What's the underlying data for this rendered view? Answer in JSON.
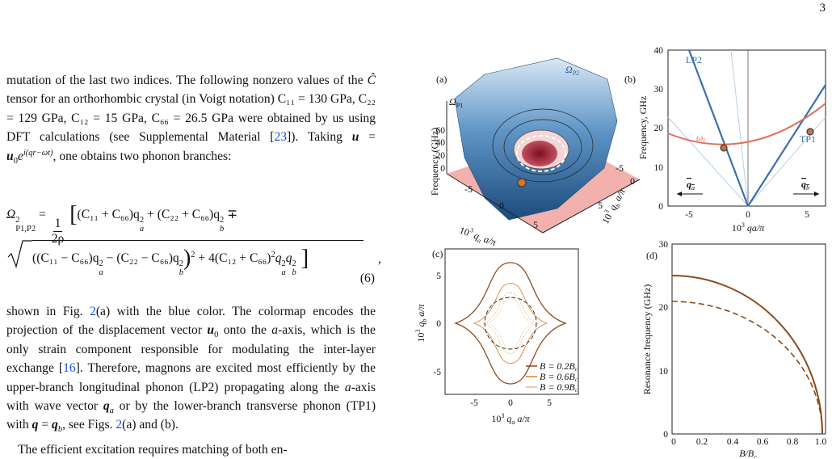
{
  "page_number": "3",
  "paragraphs": [
    [
      "mutation of the last two indices. The following nonzero values of the ",
      "Ĉ",
      " tensor for an orthorhombic crystal (in Voigt notation) ",
      "C₁₁ = 130 GPa, C₂₂ = 129 GPa, C₁₂ = 15 GPa, C₆₆ = 26.5 GPa",
      " were obtained by us using DFT calculations (see Supplemental Material [",
      "23",
      "]). Taking ",
      "u",
      " = ",
      "u",
      "0",
      "e",
      "i(qr−ωt)",
      ", one obtains two phonon branches:"
    ],
    [
      "shown in Fig. ",
      "2",
      "(a) with the blue color. The colormap encodes the projection of the displacement vector ",
      "u",
      "0",
      " onto the ",
      "a",
      "-axis, which is the only strain component responsible for modulating the inter-layer exchange [",
      "16",
      "]. Therefore, magnons are excited most efficiently by the upper-branch longitudinal phonon (LP2) propagating along the ",
      "a",
      "-axis with wave vector ",
      "q",
      "a",
      " or by the lower-branch transverse phonon (TP1) with ",
      "q",
      " = ",
      "q",
      "b",
      ", see Figs. ",
      "2",
      "(a) and (b)."
    ],
    [
      "The efficient excitation requires matching of both en-"
    ]
  ],
  "equation": {
    "line1": [
      "Ω",
      "2",
      "P1,P2",
      "=",
      "1",
      "2ρ",
      "[",
      "(C₁₁ + C₆₆)q",
      "2",
      "a",
      " + (C₂₂ + C₆₆)q",
      "2",
      "b",
      " ∓"
    ],
    "line2": [
      "((C₁₁ − C₆₆)q",
      "2",
      "a",
      " − (C₂₂ − C₆₆)q",
      "2",
      "b",
      ")",
      "2",
      " + 4(C₁₂ + C₆₆)",
      "2",
      "q",
      "2",
      "a",
      "q",
      "2",
      "b",
      "]",
      ","
    ],
    "number": "(6)"
  },
  "figure": {
    "a": {
      "label": "(a)",
      "surface_labels": [
        [
          "Ω",
          "P2"
        ],
        [
          "Ω",
          "P1"
        ]
      ],
      "z_axis_label": "Frequency (GHz)",
      "z_ticks": [
        "60",
        "40",
        "20",
        "0"
      ],
      "x_ticks": [
        "-5",
        "0",
        "5"
      ],
      "y_ticks": [
        "-5",
        "0",
        "5"
      ],
      "x_axis_label": [
        "10",
        "3",
        " q",
        "a",
        " a/π"
      ],
      "y_axis_label": [
        "10",
        "3",
        " q",
        "b",
        " a/π"
      ]
    },
    "b": {
      "label": "(b)",
      "y_ticks": [
        "0",
        "10",
        "20",
        "30",
        "40"
      ],
      "x_ticks": [
        "-5",
        "0",
        "5"
      ],
      "y_axis_label": "Frequency, GHz",
      "x_axis_label": [
        "10",
        "3",
        " qa/π"
      ],
      "curve_labels": [
        "LP2",
        "TP1"
      ],
      "omega_label": [
        "ω",
        "l"
      ],
      "arrow_labels": [
        [
          "q",
          "a"
        ],
        [
          "q",
          "b"
        ]
      ]
    },
    "c": {
      "label": "(c)",
      "y_ticks": [
        "5",
        "0",
        "-5"
      ],
      "x_ticks": [
        "-5",
        "0",
        "5"
      ],
      "y_axis_label": [
        "10",
        "3",
        " q",
        "b",
        " a/π"
      ],
      "x_axis_label": [
        "10",
        "3",
        " q",
        "a",
        " a/π"
      ],
      "legend": [
        [
          "B = 0.2B",
          "c"
        ],
        [
          "B = 0.6B",
          "c"
        ],
        [
          "B = 0.9B",
          "c"
        ]
      ]
    },
    "d": {
      "label": "(d)",
      "y_ticks": [
        "0",
        "10",
        "20",
        "30"
      ],
      "x_ticks": [
        "0",
        "0.2",
        "0.4",
        "0.6",
        "0.8",
        "1.0"
      ],
      "y_axis_label": "Resonance frequency (GHz)",
      "x_axis_label": [
        "B",
        "/B",
        "c"
      ]
    }
  }
}
